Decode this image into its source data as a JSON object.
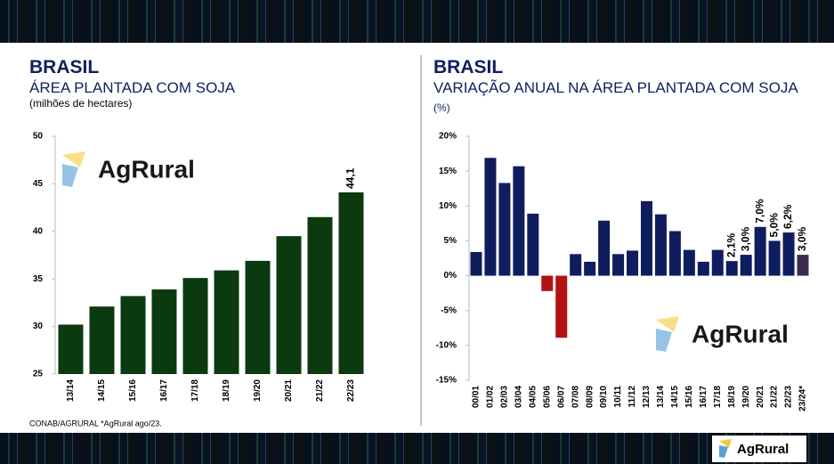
{
  "chart_data": [
    {
      "type": "bar",
      "heading": "BRASIL",
      "title": "ÁREA PLANTADA COM SOJA",
      "subtitle": "(milhões de hectares)",
      "watermark": "AgRural",
      "categories": [
        "13/14",
        "14/15",
        "15/16",
        "16/17",
        "17/18",
        "18/19",
        "19/20",
        "20/21",
        "21/22",
        "22/23"
      ],
      "values": [
        30.2,
        32.1,
        33.2,
        33.9,
        35.1,
        35.9,
        36.9,
        39.5,
        41.5,
        44.1
      ],
      "value_labels": [
        null,
        null,
        null,
        null,
        null,
        null,
        null,
        null,
        null,
        "44,1"
      ],
      "color": "#0c3a10",
      "ylim": [
        25,
        50
      ],
      "yticks": [
        25,
        30,
        35,
        40,
        45,
        50
      ],
      "grid": false
    },
    {
      "type": "bar",
      "heading": "BRASIL",
      "title": "VARIAÇÃO ANUAL NA ÁREA PLANTADA COM SOJA",
      "subtitle": "(%)",
      "watermark": "AgRural",
      "categories": [
        "00/01",
        "01/02",
        "02/03",
        "03/04",
        "04/05",
        "05/06",
        "06/07",
        "07/08",
        "08/09",
        "09/10",
        "10/11",
        "11/12",
        "12/13",
        "13/14",
        "14/15",
        "15/16",
        "16/17",
        "17/18",
        "18/19",
        "19/20",
        "20/21",
        "21/22",
        "22/23",
        "23/24*"
      ],
      "values": [
        3.4,
        16.9,
        13.3,
        15.7,
        8.9,
        -2.2,
        -8.9,
        3.1,
        2.0,
        7.9,
        3.1,
        3.6,
        10.7,
        8.8,
        6.4,
        3.7,
        2.0,
        3.7,
        2.1,
        3.0,
        7.0,
        5.0,
        6.2,
        3.0
      ],
      "value_labels": [
        null,
        null,
        null,
        null,
        null,
        null,
        null,
        null,
        null,
        null,
        null,
        null,
        null,
        null,
        null,
        null,
        null,
        null,
        "2,1%",
        "3,0%",
        "7,0%",
        "5,0%",
        "6,2%",
        "3,0%"
      ],
      "colors": [
        "#0f1d5e",
        "#0f1d5e",
        "#0f1d5e",
        "#0f1d5e",
        "#0f1d5e",
        "#b31212",
        "#b31212",
        "#0f1d5e",
        "#0f1d5e",
        "#0f1d5e",
        "#0f1d5e",
        "#0f1d5e",
        "#0f1d5e",
        "#0f1d5e",
        "#0f1d5e",
        "#0f1d5e",
        "#0f1d5e",
        "#0f1d5e",
        "#0f1d5e",
        "#0f1d5e",
        "#0f1d5e",
        "#0f1d5e",
        "#0f1d5e",
        "#3c2d4f"
      ],
      "ylim": [
        -15,
        20
      ],
      "yticks": [
        {
          "value": -15,
          "label": "-15%"
        },
        {
          "value": -10,
          "label": "-10%"
        },
        {
          "value": -5,
          "label": "-5%"
        },
        {
          "value": 0,
          "label": "0%"
        },
        {
          "value": 5,
          "label": "5%"
        },
        {
          "value": 10,
          "label": "10%"
        },
        {
          "value": 15,
          "label": "15%"
        },
        {
          "value": 20,
          "label": "20%"
        }
      ],
      "grid": false
    }
  ],
  "footer": {
    "source": "CONAB/AGRURAL  *AgRural ago/23.",
    "logo": "AgRural"
  }
}
